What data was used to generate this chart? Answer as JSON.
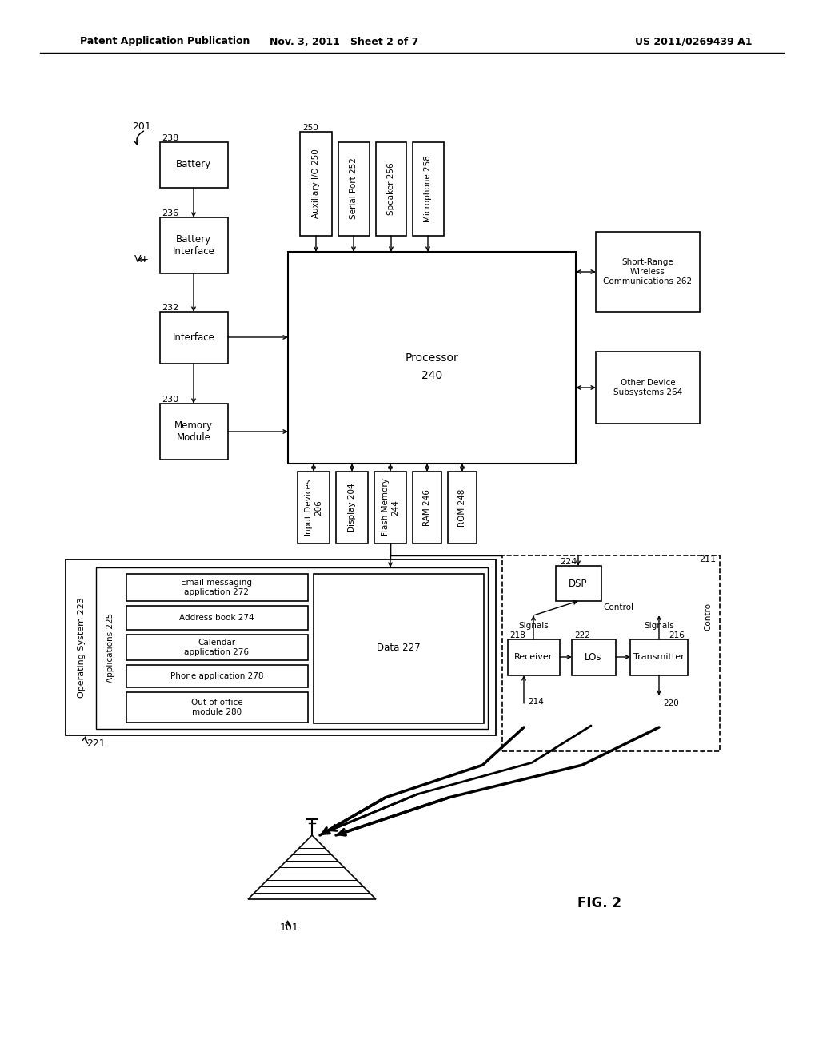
{
  "header_left": "Patent Application Publication",
  "header_mid": "Nov. 3, 2011   Sheet 2 of 7",
  "header_right": "US 2011/0269439 A1",
  "fig_label": "FIG. 2",
  "bg_color": "#ffffff",
  "line_color": "#000000"
}
